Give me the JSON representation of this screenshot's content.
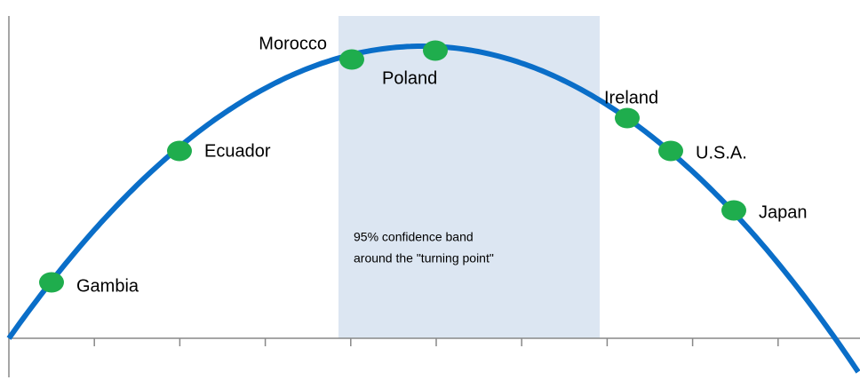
{
  "nodes": [
    {
      "label": "Gambia"
    },
    {
      "label": "Ecuador"
    },
    {
      "label": "Morocco"
    },
    {
      "label": "Poland"
    },
    {
      "label": "Ireland"
    },
    {
      "label": "U.S.A."
    },
    {
      "label": "Japan"
    }
  ],
  "annotation": {
    "lines": [
      "95%  confidence band",
      "around the \"turning point\""
    ]
  }
}
